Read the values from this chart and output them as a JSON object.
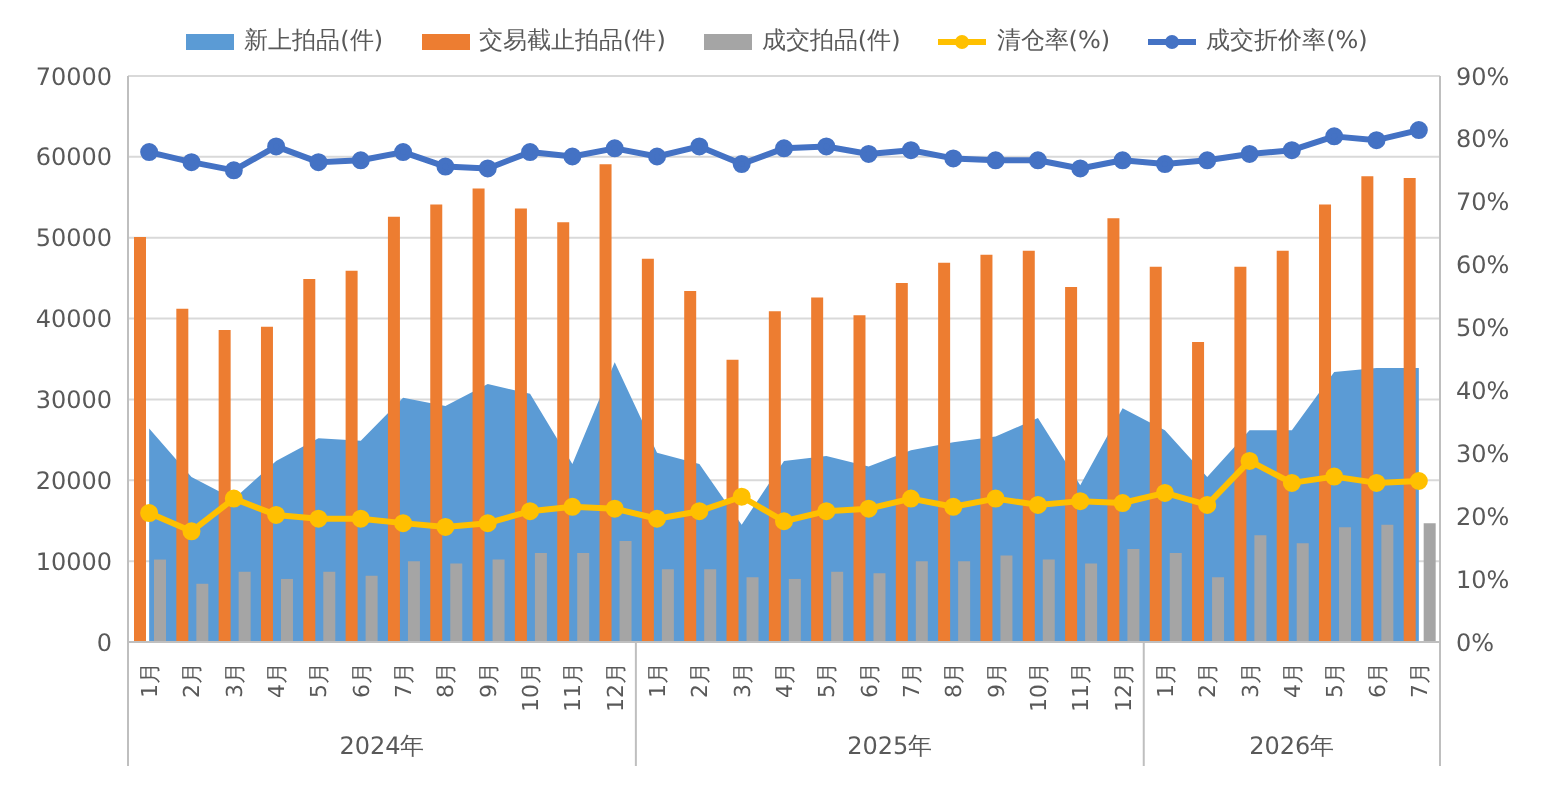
{
  "chart_data": {
    "type": "bar",
    "categories": [
      "1月",
      "2月",
      "3月",
      "4月",
      "5月",
      "6月",
      "7月",
      "8月",
      "9月",
      "10月",
      "11月",
      "12月",
      "1月",
      "2月",
      "3月",
      "4月",
      "5月",
      "6月",
      "7月",
      "8月",
      "9月",
      "10月",
      "11月",
      "12月",
      "1月",
      "2月",
      "3月",
      "4月",
      "5月",
      "6月",
      "7月"
    ],
    "annotations": [
      "2024年",
      "2025年",
      "2026年"
    ],
    "series": [
      {
        "name": "新上拍品(件)",
        "type": "area",
        "color": "#5b9bd5",
        "values": [
          26400,
          20400,
          17700,
          22400,
          25200,
          24900,
          30200,
          29200,
          31900,
          30700,
          22000,
          34600,
          23400,
          22000,
          14500,
          22400,
          23000,
          21700,
          23700,
          24700,
          25400,
          27700,
          19400,
          28900,
          26200,
          20400,
          26200,
          26200,
          33400,
          33900,
          33900
        ]
      },
      {
        "name": "交易截止拍品(件)",
        "color": "#ed7d31",
        "values": [
          50100,
          41200,
          38600,
          39000,
          44900,
          45900,
          52600,
          54100,
          56100,
          53600,
          51900,
          59100,
          47400,
          43400,
          34900,
          40900,
          42600,
          40400,
          44400,
          46900,
          47900,
          48400,
          43900,
          52400,
          46400,
          37100,
          46400,
          48400,
          54100,
          57600,
          57400
        ]
      },
      {
        "name": "成交拍品(件)",
        "color": "#a5a5a5",
        "values": [
          10200,
          7200,
          8700,
          7800,
          8700,
          8200,
          10000,
          9700,
          10200,
          11000,
          11000,
          12500,
          9000,
          9000,
          8000,
          7800,
          8700,
          8500,
          10000,
          10000,
          10700,
          10200,
          9700,
          11500,
          11000,
          8000,
          13200,
          12200,
          14200,
          14500,
          14700
        ]
      },
      {
        "name": "清仓率(%)",
        "type": "line",
        "marker": "circle",
        "axis": "y2",
        "color": "#ffc000",
        "values": [
          20.5,
          17.6,
          22.8,
          20.2,
          19.6,
          19.6,
          18.9,
          18.3,
          18.9,
          20.8,
          21.5,
          21.2,
          19.6,
          20.8,
          23.1,
          19.2,
          20.8,
          21.2,
          22.8,
          21.5,
          22.8,
          21.8,
          22.4,
          22.1,
          23.7,
          21.8,
          28.8,
          25.3,
          26.3,
          25.3,
          25.6
        ]
      },
      {
        "name": "成交折价率(%)",
        "type": "line",
        "marker": "circle",
        "axis": "y2",
        "color": "#4472c4",
        "values": [
          77.9,
          76.3,
          75.0,
          78.8,
          76.3,
          76.6,
          77.9,
          75.6,
          75.3,
          77.9,
          77.2,
          78.5,
          77.2,
          78.8,
          76.0,
          78.5,
          78.8,
          77.6,
          78.2,
          76.9,
          76.6,
          76.6,
          75.3,
          76.6,
          76.0,
          76.6,
          77.6,
          78.2,
          80.4,
          79.8,
          81.4
        ]
      }
    ],
    "ylim": [
      0,
      70000
    ],
    "yticks": [
      0,
      10000,
      20000,
      30000,
      40000,
      50000,
      60000,
      70000
    ],
    "y2lim": [
      0,
      90
    ],
    "y2ticks": [
      {
        "value": 0,
        "label": "0%"
      },
      {
        "value": 10,
        "label": "10%"
      },
      {
        "value": 20,
        "label": "20%"
      },
      {
        "value": 30,
        "label": "30%"
      },
      {
        "value": 40,
        "label": "40%"
      },
      {
        "value": 50,
        "label": "50%"
      },
      {
        "value": 60,
        "label": "60%"
      },
      {
        "value": 70,
        "label": "70%"
      },
      {
        "value": 80,
        "label": "80%"
      },
      {
        "value": 90,
        "label": "90%"
      }
    ],
    "grid": "y",
    "legend": "top",
    "line_style": "solid"
  }
}
